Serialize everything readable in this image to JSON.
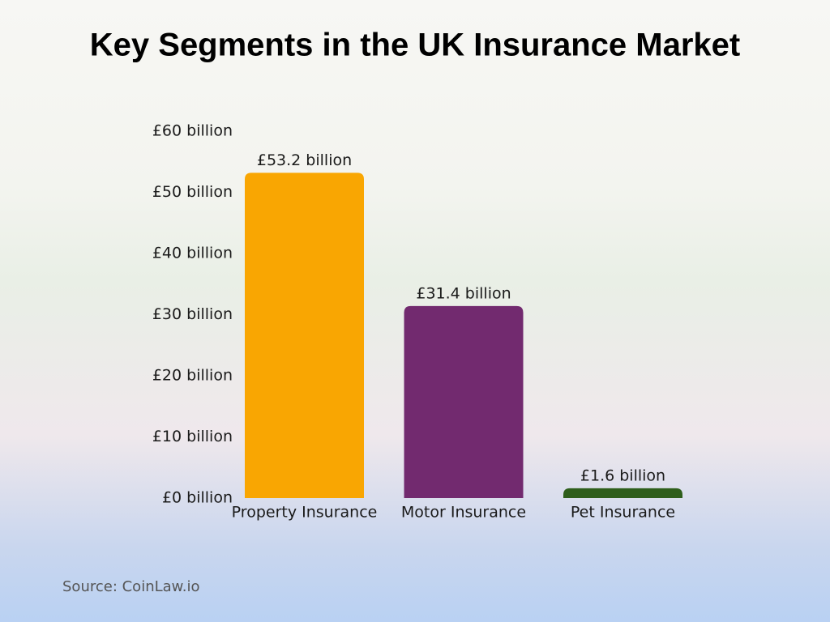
{
  "chart_data": {
    "type": "bar",
    "title": "Key Segments in the UK Insurance Market",
    "categories": [
      "Property Insurance",
      "Motor Insurance",
      "Pet Insurance"
    ],
    "values": [
      53.2,
      31.4,
      1.6
    ],
    "value_labels": [
      "£53.2 billion",
      "£31.4 billion",
      "£1.6 billion"
    ],
    "colors": [
      "#f9a602",
      "#722a6f",
      "#2e5e1b"
    ],
    "ylim": [
      0,
      60
    ],
    "yticks": [
      {
        "value": 0,
        "label": "£0 billion"
      },
      {
        "value": 10,
        "label": "£10 billion"
      },
      {
        "value": 20,
        "label": "£20 billion"
      },
      {
        "value": 30,
        "label": "£30 billion"
      },
      {
        "value": 40,
        "label": "£40 billion"
      },
      {
        "value": 50,
        "label": "£50 billion"
      },
      {
        "value": 60,
        "label": "£60 billion"
      }
    ],
    "grid": false,
    "source": "Source: CoinLaw.io"
  }
}
